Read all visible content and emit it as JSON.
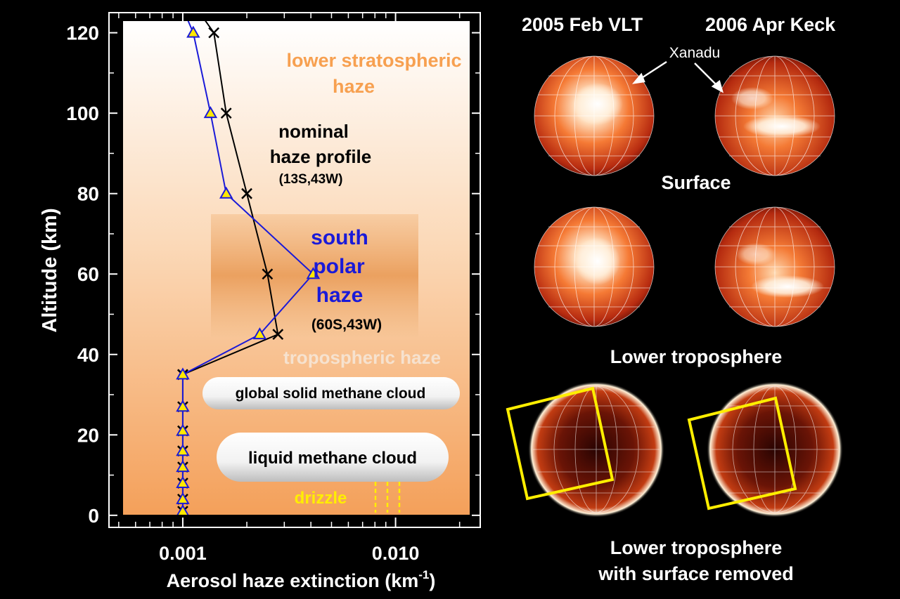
{
  "chart_data": {
    "type": "line",
    "xscale": "log",
    "xlim": [
      0.00045,
      0.025
    ],
    "ylim": [
      -3,
      125
    ],
    "xlabel": "Aerosol haze extinction (km",
    "xlabel_sup": "-1",
    "xlabel_end": ")",
    "ylabel": "Altitude (km)",
    "xticks": [
      {
        "value": 0.001,
        "label": "0.001"
      },
      {
        "value": 0.01,
        "label": "0.010"
      }
    ],
    "yticks": [
      {
        "value": 0,
        "label": "0"
      },
      {
        "value": 20,
        "label": "20"
      },
      {
        "value": 40,
        "label": "40"
      },
      {
        "value": 60,
        "label": "60"
      },
      {
        "value": 80,
        "label": "80"
      },
      {
        "value": 100,
        "label": "100"
      },
      {
        "value": 120,
        "label": "120"
      }
    ],
    "series": [
      {
        "name": "nominal haze profile",
        "marker": "x",
        "color": "#000000",
        "x": [
          0.001,
          0.001,
          0.001,
          0.001,
          0.001,
          0.001,
          0.001,
          0.001,
          0.001,
          0.0028,
          0.0025,
          0.002,
          0.0016,
          0.0014
        ],
        "y": [
          1,
          4,
          8,
          12,
          16,
          21,
          27,
          35,
          35,
          45,
          60,
          80,
          100,
          120
        ],
        "xtop": 0.0012,
        "ytop": 125
      },
      {
        "name": "south polar haze",
        "marker": "triangle",
        "color": "#1a1ad8",
        "x": [
          0.001,
          0.001,
          0.001,
          0.001,
          0.001,
          0.001,
          0.001,
          0.001,
          0.0023,
          0.0041,
          0.0016,
          0.00135,
          0.00112
        ],
        "y": [
          1,
          4,
          8,
          12,
          16,
          21,
          27,
          35,
          45,
          60,
          80,
          100,
          120
        ],
        "xtop": 0.00102,
        "ytop": 125
      }
    ],
    "annotations": {
      "strat1": "lower stratospheric",
      "strat2": "haze",
      "nom1": "nominal",
      "nom2": "haze profile",
      "nom3": "(13S,43W)",
      "sp1": "south",
      "sp2": "polar",
      "sp3": "haze",
      "sp4": "(60S,43W)",
      "trop": "tropospheric haze",
      "solid_cloud": "global solid methane cloud",
      "liquid_cloud": "liquid methane cloud",
      "drizzle": "drizzle"
    },
    "colors": {
      "annotation_orange": "#f7a050",
      "annotation_blue": "#1a1ad8",
      "annotation_yellow": "#ffee00",
      "tropospheric_text": "#f6e2cf"
    }
  },
  "images": {
    "titles": [
      "2005 Feb VLT",
      "2006 Apr Keck"
    ],
    "xanadu": "Xanadu",
    "captions": [
      "Surface",
      "Lower troposphere",
      "Lower troposphere",
      "with surface removed"
    ]
  }
}
